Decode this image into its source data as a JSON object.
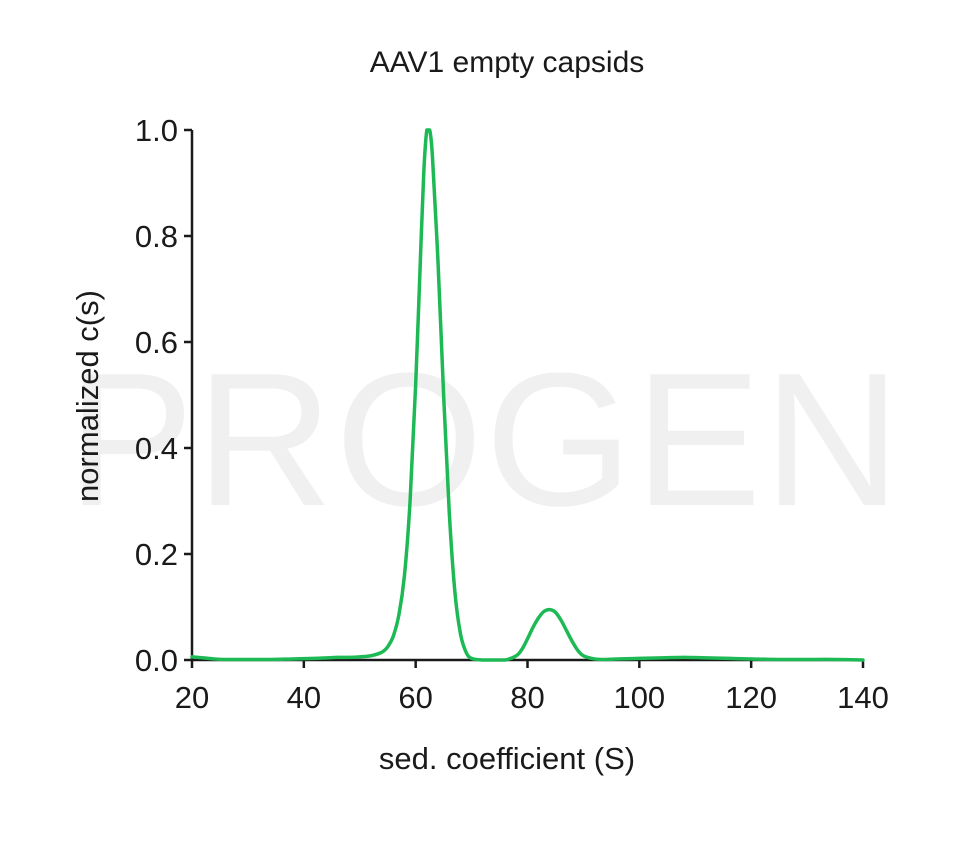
{
  "watermark": "PROGEN",
  "chart_data": {
    "type": "line",
    "title": "AAV1 empty capsids",
    "xlabel": "sed. coefficient (S)",
    "ylabel": "normalized c(s)",
    "xlim": [
      20,
      140
    ],
    "ylim": [
      0,
      1.0
    ],
    "xticks": [
      {
        "value": 20,
        "label": "20"
      },
      {
        "value": 40,
        "label": "40"
      },
      {
        "value": 60,
        "label": "60"
      },
      {
        "value": 80,
        "label": "80"
      },
      {
        "value": 100,
        "label": "100"
      },
      {
        "value": 120,
        "label": "120"
      },
      {
        "value": 140,
        "label": "140"
      }
    ],
    "yticks": [
      {
        "value": 0.0,
        "label": "0.0"
      },
      {
        "value": 0.2,
        "label": "0.2"
      },
      {
        "value": 0.4,
        "label": "0.4"
      },
      {
        "value": 0.6,
        "label": "0.6"
      },
      {
        "value": 0.8,
        "label": "0.8"
      },
      {
        "value": 1.0,
        "label": "1.0"
      }
    ],
    "grid": false,
    "series": [
      {
        "color": "#1db954",
        "x": [
          20,
          22,
          24,
          26,
          28,
          30,
          34,
          38,
          42,
          44,
          46,
          48,
          50,
          52,
          54,
          55,
          56,
          57,
          58,
          59,
          60,
          61,
          61.5,
          62,
          62.5,
          63,
          64,
          65,
          66,
          67,
          68,
          69,
          70,
          72,
          74,
          76,
          78,
          79,
          80,
          81,
          82,
          83,
          84,
          85,
          86,
          87,
          88,
          89,
          90,
          92,
          94,
          96,
          100,
          104,
          108,
          112,
          116,
          120,
          125,
          130,
          135,
          140
        ],
        "y": [
          0.006,
          0.004,
          0.002,
          0.001,
          0.001,
          0.001,
          0.001,
          0.002,
          0.003,
          0.004,
          0.005,
          0.005,
          0.006,
          0.008,
          0.015,
          0.025,
          0.045,
          0.085,
          0.16,
          0.3,
          0.52,
          0.8,
          0.93,
          1.0,
          1.0,
          0.95,
          0.75,
          0.5,
          0.28,
          0.13,
          0.05,
          0.015,
          0.003,
          0.0,
          0.0,
          0.0,
          0.008,
          0.02,
          0.04,
          0.062,
          0.08,
          0.092,
          0.095,
          0.09,
          0.075,
          0.055,
          0.035,
          0.018,
          0.008,
          0.002,
          0.001,
          0.002,
          0.003,
          0.004,
          0.005,
          0.004,
          0.003,
          0.002,
          0.001,
          0.001,
          0.001,
          0.0
        ]
      }
    ]
  }
}
